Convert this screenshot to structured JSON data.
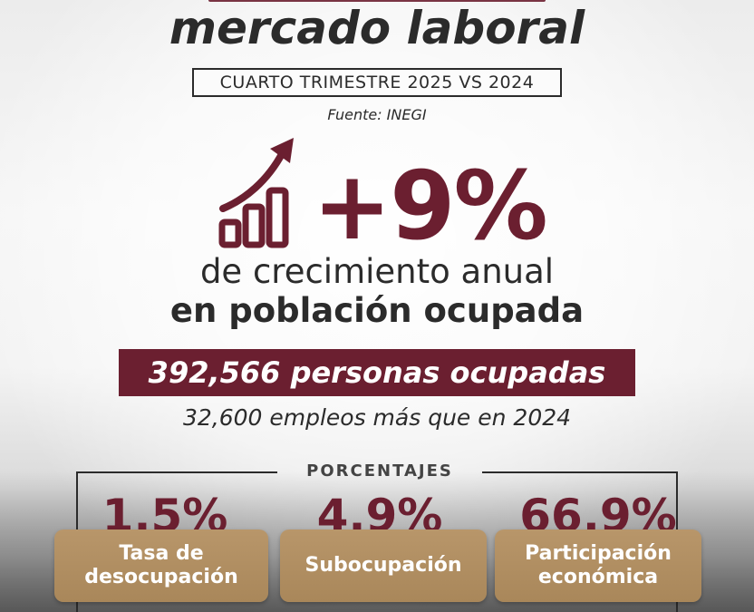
{
  "header": {
    "title": "mercado laboral",
    "period": "CUARTO TRIMESTRE 2025 VS 2024",
    "source": "Fuente: INEGI"
  },
  "highlight": {
    "percent": "+9%",
    "line1": "de crecimiento anual",
    "line2": "en población ocupada",
    "people": "392,566 personas ocupadas",
    "more_jobs": "32,600 empleos más que en 2024"
  },
  "percentages": {
    "label": "PORCENTAJES",
    "items": [
      {
        "value": "1.5%",
        "label_line1": "Tasa de",
        "label_line2": "desocupación"
      },
      {
        "value": "4.9%",
        "label_line1": "Subocupación",
        "label_line2": ""
      },
      {
        "value": "66.9%",
        "label_line1": "Participación",
        "label_line2": "económica"
      }
    ]
  },
  "colors": {
    "accent": "#6b1f30",
    "card": "#b09060",
    "text": "#2b2b2b"
  },
  "icons": {
    "growth": "growth-chart-arrow-icon"
  }
}
